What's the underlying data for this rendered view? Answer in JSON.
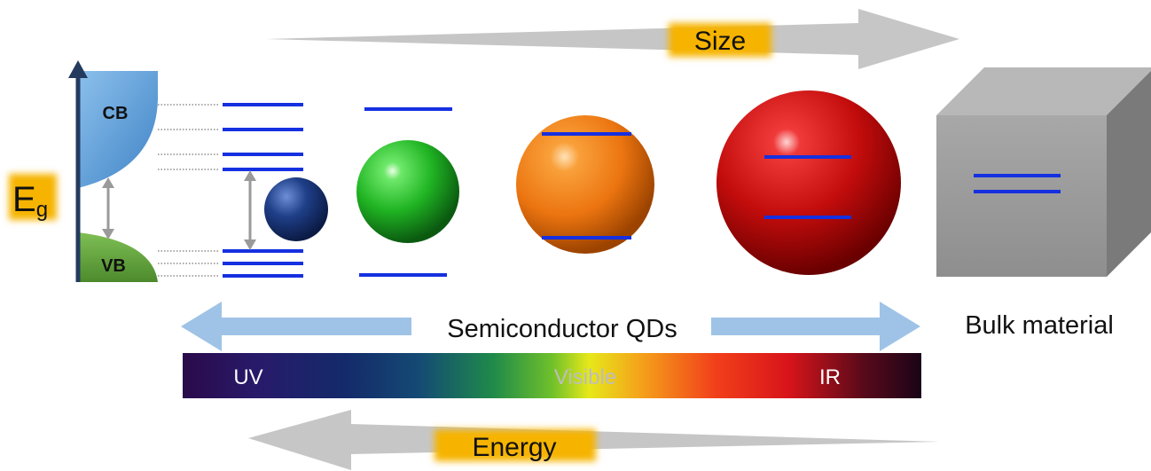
{
  "labels": {
    "size": "Size",
    "energy": "Energy",
    "bandgap_main": "E",
    "bandgap_sub": "g",
    "cb": "CB",
    "vb": "VB",
    "qds": "Semiconductor QDs",
    "bulk": "Bulk material"
  },
  "spectrum": {
    "uv": "UV",
    "visible": "Visible",
    "ir": "IR"
  },
  "colors": {
    "highlight": "#f6b400",
    "level_line": "#1530e0",
    "conduction_band": "#5b9bd5",
    "valence_band": "#5f9e3a",
    "arrow_gray": "#c8c8c8",
    "arrow_blue": "#9fc3e6",
    "qd_small": "#1b3a7a",
    "qd_green": "#22b02a",
    "qd_orange": "#f07d12",
    "qd_red": "#c40d0d",
    "bulk_cube": "#9a9a9a"
  }
}
